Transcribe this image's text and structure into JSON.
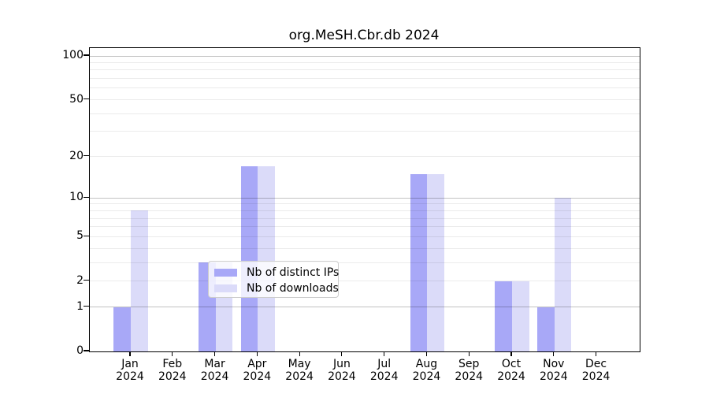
{
  "chart_data": {
    "type": "bar",
    "title": "org.MeSH.Cbr.db 2024",
    "year": "2024",
    "categories": [
      "Jan",
      "Feb",
      "Mar",
      "Apr",
      "May",
      "Jun",
      "Jul",
      "Aug",
      "Sep",
      "Oct",
      "Nov",
      "Dec"
    ],
    "series": [
      {
        "name": "Nb of distinct IPs",
        "color": "#a8a8f7",
        "values": [
          1,
          0,
          3,
          17,
          0,
          0,
          0,
          15,
          0,
          2,
          1,
          0
        ]
      },
      {
        "name": "Nb of downloads",
        "color": "#dbdbf9",
        "values": [
          8,
          0,
          3,
          17,
          0,
          0,
          0,
          15,
          0,
          2,
          10,
          0
        ]
      }
    ],
    "y_axis": {
      "scale": "log1p",
      "max": 100,
      "ticks": [
        0,
        1,
        2,
        5,
        10,
        20,
        50,
        100
      ],
      "major_grid": [
        1,
        10,
        100
      ],
      "minor_grid": [
        2,
        3,
        4,
        5,
        6,
        7,
        8,
        9,
        20,
        30,
        40,
        50,
        60,
        70,
        80,
        90
      ]
    },
    "legend_position": "bottom-center",
    "grid": "on",
    "xlabel": "",
    "ylabel": ""
  },
  "colors": {
    "spine": "#000000",
    "major_grid": "#c2c2c2",
    "minor_grid": "#ebebeb",
    "background": "#ffffff"
  }
}
